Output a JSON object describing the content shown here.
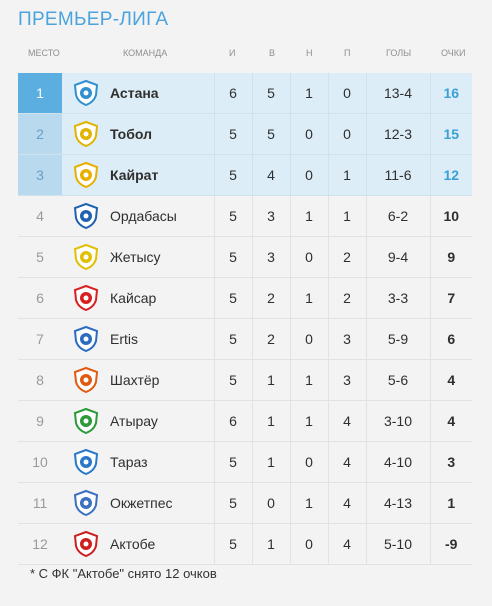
{
  "title": "ПРЕМЬЕР-ЛИГА",
  "headers": {
    "place": "МЕСТО",
    "team": "КОМАНДА",
    "games": "И",
    "wins": "В",
    "draws": "Н",
    "losses": "П",
    "goals": "ГОЛЫ",
    "points": "ОЧКИ"
  },
  "rows": [
    {
      "place": "1",
      "team": "Астана",
      "games": "6",
      "wins": "5",
      "draws": "1",
      "losses": "0",
      "goals": "13-4",
      "points": "16",
      "crest": "astana-crest-icon",
      "color": "#2f8fd0"
    },
    {
      "place": "2",
      "team": "Тобол",
      "games": "5",
      "wins": "5",
      "draws": "0",
      "losses": "0",
      "goals": "12-3",
      "points": "15",
      "crest": "tobol-crest-icon",
      "color": "#e0b400"
    },
    {
      "place": "3",
      "team": "Кайрат",
      "games": "5",
      "wins": "4",
      "draws": "0",
      "losses": "1",
      "goals": "11-6",
      "points": "12",
      "crest": "kairat-crest-icon",
      "color": "#e8b000"
    },
    {
      "place": "4",
      "team": "Ордабасы",
      "games": "5",
      "wins": "3",
      "draws": "1",
      "losses": "1",
      "goals": "6-2",
      "points": "10",
      "crest": "ordabasy-crest-icon",
      "color": "#2062b0"
    },
    {
      "place": "5",
      "team": "Жетысу",
      "games": "5",
      "wins": "3",
      "draws": "0",
      "losses": "2",
      "goals": "9-4",
      "points": "9",
      "crest": "zhetysu-crest-icon",
      "color": "#e0c000"
    },
    {
      "place": "6",
      "team": "Кайсар",
      "games": "5",
      "wins": "2",
      "draws": "1",
      "losses": "2",
      "goals": "3-3",
      "points": "7",
      "crest": "kaisar-crest-icon",
      "color": "#d92020"
    },
    {
      "place": "7",
      "team": "Ertis",
      "games": "5",
      "wins": "2",
      "draws": "0",
      "losses": "3",
      "goals": "5-9",
      "points": "6",
      "crest": "ertis-crest-icon",
      "color": "#2a6cc0"
    },
    {
      "place": "8",
      "team": "Шахтёр",
      "games": "5",
      "wins": "1",
      "draws": "1",
      "losses": "3",
      "goals": "5-6",
      "points": "4",
      "crest": "shakhter-crest-icon",
      "color": "#e05a10"
    },
    {
      "place": "9",
      "team": "Атырау",
      "games": "6",
      "wins": "1",
      "draws": "1",
      "losses": "4",
      "goals": "3-10",
      "points": "4",
      "crest": "atyrau-crest-icon",
      "color": "#2a9a3a"
    },
    {
      "place": "10",
      "team": "Тараз",
      "games": "5",
      "wins": "1",
      "draws": "0",
      "losses": "4",
      "goals": "4-10",
      "points": "3",
      "crest": "taraz-crest-icon",
      "color": "#2a78c8"
    },
    {
      "place": "11",
      "team": "Окжетпес",
      "games": "5",
      "wins": "0",
      "draws": "1",
      "losses": "4",
      "goals": "4-13",
      "points": "1",
      "crest": "okzhetpes-crest-icon",
      "color": "#3a70c0"
    },
    {
      "place": "12",
      "team": "Актобе",
      "games": "5",
      "wins": "1",
      "draws": "0",
      "losses": "4",
      "goals": "5-10",
      "points": "-9",
      "crest": "aktobe-crest-icon",
      "color": "#cc2020"
    }
  ],
  "note": "* С ФК \"Актобе\" снято 12 очков",
  "colors": {
    "accent": "#4aa3dc",
    "highlight_row": "#dcedf7",
    "first_place": "#5aaee0",
    "top_places": "#b8d9ee"
  }
}
